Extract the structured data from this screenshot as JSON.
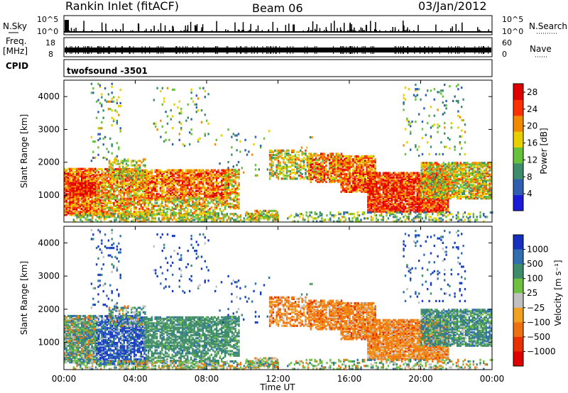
{
  "header": {
    "station": "Rankin Inlet (fitACF)",
    "beam": "Beam 06",
    "date": "03/Jan/2012"
  },
  "strips": {
    "nsky_label": "N.Sky",
    "nsky_ticks": [
      "10^5",
      "10^0"
    ],
    "nsearch_label": "N.Search",
    "nsearch_ticks": [
      "10^5",
      "10^0"
    ],
    "freq_label": "Freq.",
    "freq_unit": "[MHz]",
    "freq_ticks": [
      "18",
      "8"
    ],
    "nave_label": "Nave",
    "nave_ticks": [
      "60",
      "0"
    ],
    "cpid_label": "CPID",
    "cpid_value": "twofsound  -3501"
  },
  "chart_data": [
    {
      "type": "heatmap",
      "name": "power",
      "ylabel": "Slant Range [km]",
      "yticks": [
        "1000",
        "2000",
        "3000",
        "4000"
      ],
      "yrange_km": [
        180,
        4500
      ],
      "xrange_hours": [
        0,
        24
      ],
      "colorbar_label": "Power [dB]",
      "colorbar_ticks": [
        "4",
        "8",
        "12",
        "16",
        "20",
        "24",
        "28"
      ],
      "colorbar_range": [
        0,
        30
      ],
      "colors": [
        "#1a1adb",
        "#2f5fb0",
        "#3d8c6b",
        "#66c23a",
        "#e8d000",
        "#f28a00",
        "#ff3000",
        "#e00000"
      ]
    },
    {
      "type": "heatmap",
      "name": "velocity",
      "ylabel": "Slant Range [km]",
      "yticks": [
        "1000",
        "2000",
        "3000",
        "4000"
      ],
      "yrange_km": [
        180,
        4500
      ],
      "xrange_hours": [
        0,
        24
      ],
      "colorbar_label": "Velocity [m s⁻¹]",
      "colorbar_ticks": [
        "1000",
        "500",
        "100",
        "25",
        "−25",
        "−100",
        "−500",
        "−1000"
      ],
      "colors": [
        "#1530c0",
        "#2f6fb0",
        "#3d8c6b",
        "#6fbf40",
        "#c0c0c0",
        "#f2a020",
        "#f07010",
        "#e83000",
        "#e00000"
      ]
    }
  ],
  "xaxis": {
    "label": "Time UT",
    "ticks": [
      "00:00",
      "04:00",
      "08:00",
      "12:00",
      "16:00",
      "20:00",
      "00:00"
    ]
  }
}
